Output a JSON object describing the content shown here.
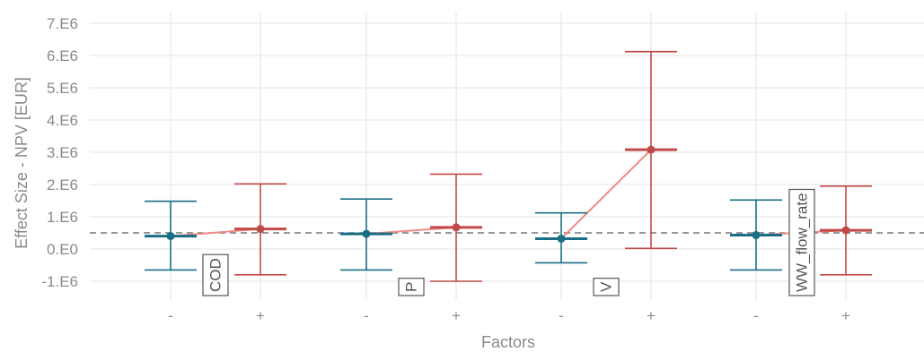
{
  "chart_data": {
    "type": "errorbar",
    "xlabel": "Factors",
    "ylabel": "Effect Size - NPV [EUR]",
    "ylim": [
      -1.5,
      7.0
    ],
    "y_ticks": [
      {
        "value": -1,
        "label": "-1.E6"
      },
      {
        "value": 0,
        "label": "0.E0"
      },
      {
        "value": 1,
        "label": "1.E6"
      },
      {
        "value": 2,
        "label": "2.E6"
      },
      {
        "value": 3,
        "label": "3.E6"
      },
      {
        "value": 4,
        "label": "4.E6"
      },
      {
        "value": 5,
        "label": "5.E6"
      },
      {
        "value": 6,
        "label": "6.E6"
      },
      {
        "value": 7,
        "label": "7.E6"
      }
    ],
    "y_unit": 1000000,
    "reference_line": 0.5,
    "grid": true,
    "levels": [
      "-",
      "+"
    ],
    "factors": [
      {
        "name": "COD",
        "minus": {
          "mean": 0.4,
          "low": -0.65,
          "high": 1.48
        },
        "plus": {
          "mean": 0.62,
          "low": -0.8,
          "high": 2.02
        }
      },
      {
        "name": "P",
        "minus": {
          "mean": 0.47,
          "low": -0.65,
          "high": 1.55
        },
        "plus": {
          "mean": 0.67,
          "low": -1.0,
          "high": 2.32
        }
      },
      {
        "name": "V",
        "minus": {
          "mean": 0.32,
          "low": -0.43,
          "high": 1.12
        },
        "plus": {
          "mean": 3.08,
          "low": 0.02,
          "high": 6.12
        }
      },
      {
        "name": "WW_flow_rate",
        "minus": {
          "mean": 0.43,
          "low": -0.65,
          "high": 1.52
        },
        "plus": {
          "mean": 0.58,
          "low": -0.8,
          "high": 1.95
        }
      }
    ],
    "colors": {
      "minus": "#1a6e85",
      "plus": "#c04a47",
      "connector": "#f08b85",
      "reference": "#777777",
      "grid": "#e3e3e3"
    }
  }
}
